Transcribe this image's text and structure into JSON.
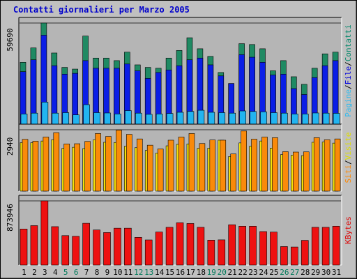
{
  "chart_data": {
    "type": "bar",
    "title": "Contatti giornalieri per Marzo 2005",
    "categories": [
      "1",
      "2",
      "3",
      "4",
      "5",
      "6",
      "7",
      "8",
      "9",
      "10",
      "11",
      "12",
      "13",
      "14",
      "15",
      "16",
      "17",
      "18",
      "19",
      "20",
      "21",
      "22",
      "23",
      "24",
      "25",
      "26",
      "27",
      "28",
      "29",
      "30",
      "31"
    ],
    "weekend_days": [
      "5",
      "6",
      "12",
      "13",
      "19",
      "20",
      "26",
      "27"
    ],
    "panels": [
      {
        "id": "top",
        "y_tick_label": "59690",
        "y_max": 59690,
        "axis_legend": [
          "Pagine",
          "File",
          "Contatti"
        ],
        "axis_legend_colors": [
          "#33bbee",
          "#0000dd",
          "#00886a"
        ],
        "series": [
          {
            "name": "Contatti",
            "color": "#1f8a63",
            "values": [
              36500,
              45000,
              59690,
              42000,
              33500,
              32500,
              52000,
              39000,
              39000,
              37500,
              42500,
              35000,
              33500,
              33000,
              39000,
              43500,
              51000,
              44500,
              40000,
              30500,
              24000,
              47500,
              47000,
              44500,
              31500,
              37500,
              28000,
              23500,
              33000,
              41500,
              42500
            ]
          },
          {
            "name": "File",
            "color": "#0a1ee6",
            "values": [
              31000,
              38000,
              52500,
              34500,
              29500,
              30000,
              37500,
              33000,
              33000,
              33000,
              35500,
              31500,
              27000,
              30500,
              32000,
              34500,
              38000,
              39000,
              35000,
              28500,
              24000,
              41000,
              39500,
              36500,
              29000,
              29500,
              21000,
              17500,
              27500,
              34500,
              37500
            ]
          },
          {
            "name": "Pagine",
            "color": "#22b4f0",
            "values": [
              6000,
              6500,
              13000,
              6500,
              6800,
              5500,
              11500,
              6800,
              6600,
              6000,
              8000,
              6500,
              5800,
              6000,
              6300,
              7000,
              7500,
              8200,
              7000,
              6800,
              6500,
              7800,
              7500,
              7300,
              6800,
              6500,
              6000,
              6000,
              6600,
              6500,
              6400
            ]
          }
        ]
      },
      {
        "id": "mid",
        "y_tick_label": "2940",
        "y_max": 2940,
        "axis_legend": [
          "Siti",
          "Visite"
        ],
        "axis_legend_colors": [
          "#ff8800",
          "#dddd00"
        ],
        "series": [
          {
            "name": "Visite",
            "color": "#f5e20a",
            "values": [
              2320,
              2320,
              2400,
              2460,
              2050,
              2100,
              2040,
              2460,
              2340,
              2330,
              2150,
              2080,
              1950,
              1820,
              2170,
              2240,
              2260,
              2050,
              2060,
              2440,
              1660,
              2310,
              2150,
              2400,
              2060,
              1750,
              1720,
              1700,
              2340,
              2350,
              2300
            ]
          },
          {
            "name": "Siti",
            "color": "#fa8a0a",
            "values": [
              2480,
              2390,
              2590,
              2800,
              2260,
              2270,
              2380,
              2760,
              2620,
              2920,
              2720,
              2500,
              2200,
              2020,
              2440,
              2590,
              2760,
              2280,
              2450,
              2440,
              1780,
              2880,
              2490,
              2590,
              2560,
              1890,
              1870,
              1880,
              2560,
              2460,
              2500
            ]
          }
        ]
      },
      {
        "id": "bottom",
        "y_tick_label": "873946",
        "y_max": 873946,
        "axis_legend": [
          "KBytes"
        ],
        "axis_legend_colors": [
          "#dd0000"
        ],
        "series": [
          {
            "name": "KBytes",
            "color": "#ee1111",
            "values": [
              491000,
              537000,
              873946,
              523000,
              401000,
              392000,
              569000,
              478000,
              443000,
              502000,
              502000,
              377000,
              342000,
              450000,
              514000,
              576000,
              566000,
              514000,
              339000,
              343000,
              549000,
              529000,
              529000,
              456000,
              449000,
              252000,
              246000,
              336000,
              514000,
              514000,
              529000
            ]
          }
        ]
      }
    ]
  }
}
